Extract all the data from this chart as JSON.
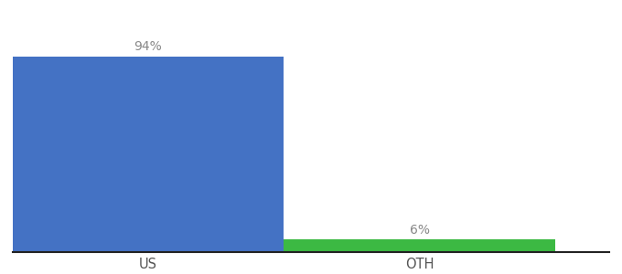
{
  "categories": [
    "US",
    "OTH"
  ],
  "values": [
    94,
    6
  ],
  "bar_colors": [
    "#4472c4",
    "#3cb943"
  ],
  "label_texts": [
    "94%",
    "6%"
  ],
  "background_color": "#ffffff",
  "ylim": [
    0,
    108
  ],
  "label_fontsize": 10,
  "tick_fontsize": 10.5,
  "bar_width": 0.5,
  "bar_positions": [
    0.25,
    0.75
  ],
  "xlim": [
    0.0,
    1.1
  ],
  "label_color": "#888888",
  "tick_color": "#555555",
  "spine_color": "#222222"
}
